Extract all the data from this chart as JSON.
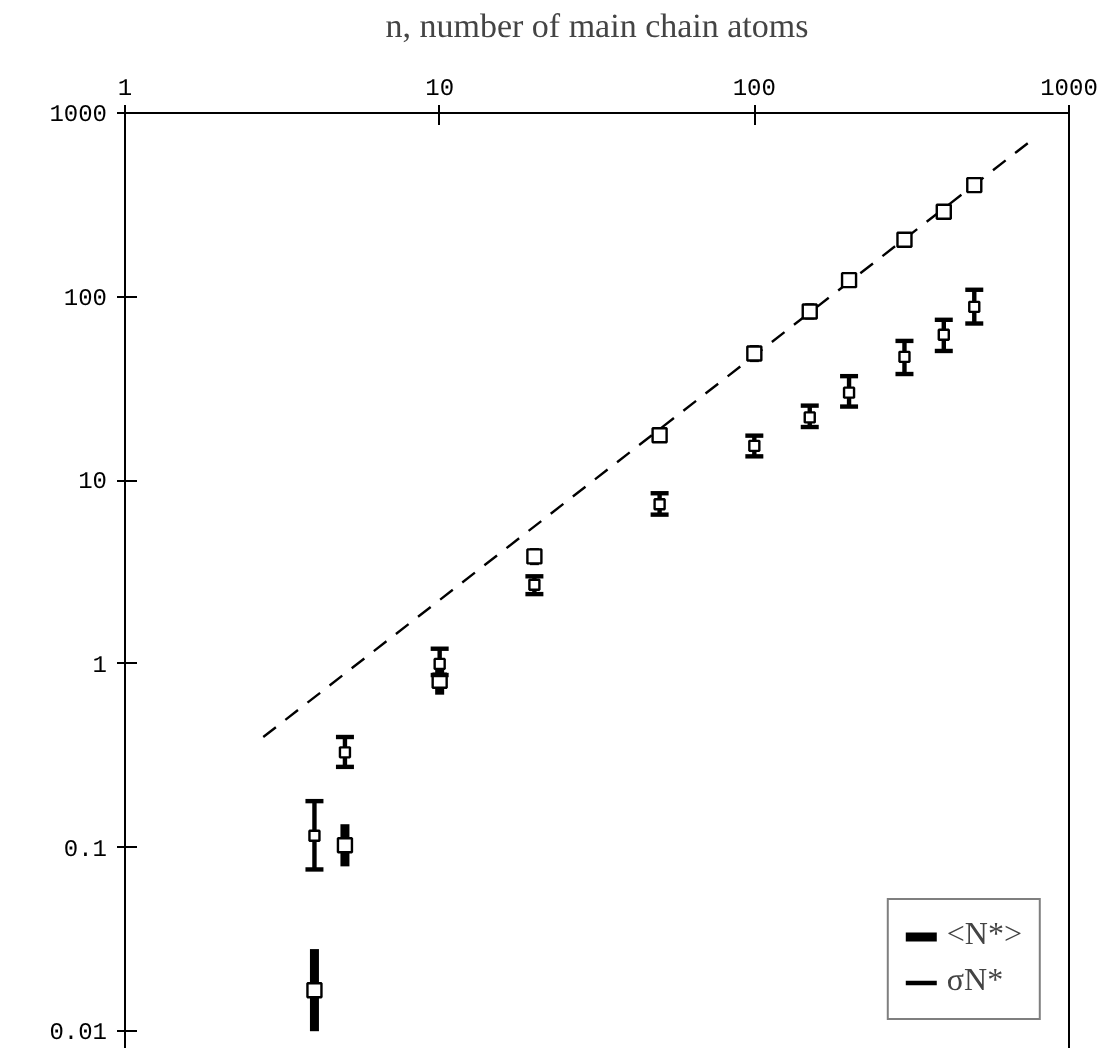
{
  "chart_data": {
    "type": "scatter",
    "xlabel": "n, number of main chain atoms",
    "log": "xy",
    "xlim": [
      1,
      1000
    ],
    "ylim": [
      0.008,
      1000
    ],
    "xticks": [
      1,
      10,
      100,
      1000
    ],
    "yticks": [
      0.01,
      0.1,
      1,
      10,
      100,
      1000
    ],
    "grid": false,
    "legend": "bottom right",
    "series": [
      {
        "name": "<N*>",
        "type": "scatter",
        "marker": "square",
        "color": "#000000",
        "x": [
          4,
          5,
          10,
          20,
          50,
          100,
          150,
          200,
          300,
          400,
          500
        ],
        "values": [
          0.0167,
          0.103,
          0.81,
          3.85,
          17.6,
          49,
          83,
          123,
          204,
          290,
          405
        ],
        "errors": [
          [
            0.01,
            0.028
          ],
          [
            0.079,
            0.134
          ],
          [
            0.68,
            0.95
          ],
          [
            3.45,
            4.27
          ],
          [
            16,
            19.5
          ],
          [
            44,
            54.5
          ],
          [
            75,
            92
          ],
          [
            112,
            135
          ],
          [
            186,
            224
          ],
          [
            265,
            318
          ],
          [
            370,
            445
          ]
        ]
      },
      {
        "name": "σN*",
        "type": "scatter",
        "marker": "square",
        "color": "#000000",
        "x": [
          4,
          5,
          10,
          20,
          50,
          100,
          150,
          200,
          300,
          400,
          500
        ],
        "values": [
          0.116,
          0.33,
          1.0,
          2.7,
          7.4,
          15.4,
          22,
          30,
          47,
          62,
          88
        ],
        "errors": [
          [
            0.076,
            0.179
          ],
          [
            0.275,
            0.4
          ],
          [
            0.87,
            1.21
          ],
          [
            2.4,
            3.0
          ],
          [
            6.5,
            8.5
          ],
          [
            13.5,
            17.5
          ],
          [
            19.5,
            25.5
          ],
          [
            25.2,
            36.9
          ],
          [
            37.9,
            57.4
          ],
          [
            50.6,
            74.8
          ],
          [
            71.4,
            109
          ]
        ]
      },
      {
        "type": "line",
        "line_style": "dashed",
        "color": "#000000",
        "x": [
          2.75,
          765
        ],
        "values": [
          0.4,
          716
        ]
      }
    ]
  }
}
